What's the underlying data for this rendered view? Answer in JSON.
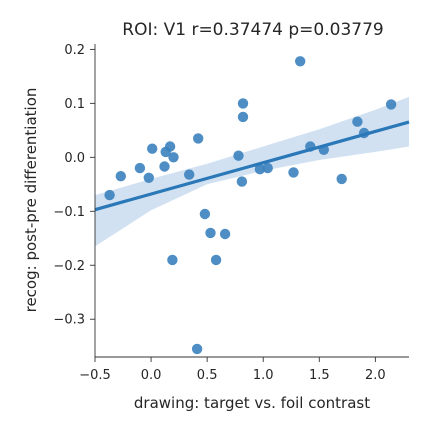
{
  "chart_data": {
    "type": "scatter",
    "title": "ROI: V1  r=0.37474  p=0.03779",
    "xlabel": "drawing: target vs. foil contrast",
    "ylabel": "recog: post-pre differentiation",
    "xlim": [
      -0.5,
      2.3
    ],
    "ylim": [
      -0.37,
      0.21
    ],
    "xticks": [
      -0.5,
      0.0,
      0.5,
      1.0,
      1.5,
      2.0
    ],
    "xtick_labels": [
      "−0.5",
      "0.0",
      "0.5",
      "1.0",
      "1.5",
      "2.0"
    ],
    "yticks": [
      -0.3,
      -0.2,
      -0.1,
      0.0,
      0.1,
      0.2
    ],
    "ytick_labels": [
      "−0.3",
      "−0.2",
      "−0.1",
      "0.0",
      "0.1",
      "0.2"
    ],
    "grid": false,
    "colors": {
      "points": "#3b82be",
      "line": "#2a78b8",
      "band": "#c9dcee"
    },
    "points": [
      {
        "x": -0.37,
        "y": -0.07
      },
      {
        "x": -0.27,
        "y": -0.035
      },
      {
        "x": -0.1,
        "y": -0.02
      },
      {
        "x": -0.02,
        "y": -0.038
      },
      {
        "x": 0.01,
        "y": 0.016
      },
      {
        "x": 0.12,
        "y": -0.017
      },
      {
        "x": 0.13,
        "y": 0.01
      },
      {
        "x": 0.17,
        "y": 0.02
      },
      {
        "x": 0.2,
        "y": 0.0
      },
      {
        "x": 0.19,
        "y": -0.19
      },
      {
        "x": 0.34,
        "y": -0.032
      },
      {
        "x": 0.42,
        "y": 0.035
      },
      {
        "x": 0.48,
        "y": -0.105
      },
      {
        "x": 0.53,
        "y": -0.14
      },
      {
        "x": 0.58,
        "y": -0.19
      },
      {
        "x": 0.66,
        "y": -0.142
      },
      {
        "x": 0.41,
        "y": -0.355
      },
      {
        "x": 0.78,
        "y": 0.003
      },
      {
        "x": 0.81,
        "y": -0.045
      },
      {
        "x": 0.82,
        "y": 0.1
      },
      {
        "x": 0.82,
        "y": 0.075
      },
      {
        "x": 0.97,
        "y": -0.022
      },
      {
        "x": 1.04,
        "y": -0.02
      },
      {
        "x": 1.27,
        "y": -0.028
      },
      {
        "x": 1.33,
        "y": 0.178
      },
      {
        "x": 1.42,
        "y": 0.02
      },
      {
        "x": 1.54,
        "y": 0.014
      },
      {
        "x": 1.7,
        "y": -0.04
      },
      {
        "x": 1.84,
        "y": 0.066
      },
      {
        "x": 1.9,
        "y": 0.045
      },
      {
        "x": 2.14,
        "y": 0.098
      }
    ],
    "regression": {
      "slope": 0.058,
      "intercept": -0.068
    },
    "ci_band": {
      "x": [
        -0.5,
        0.0,
        0.5,
        1.0,
        1.5,
        2.0,
        2.3
      ],
      "lower": [
        -0.165,
        -0.098,
        -0.05,
        -0.025,
        -0.005,
        0.01,
        0.02
      ],
      "upper": [
        -0.07,
        -0.04,
        -0.012,
        0.02,
        0.052,
        0.088,
        0.112
      ]
    }
  }
}
